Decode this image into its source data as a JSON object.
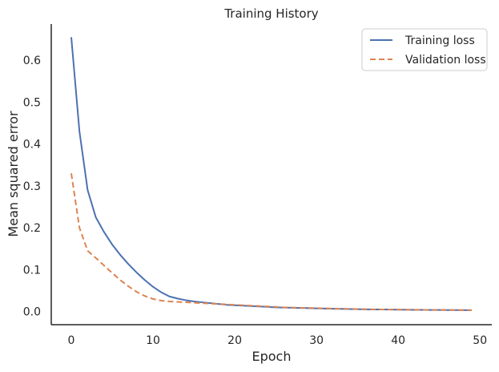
{
  "chart_data": {
    "type": "line",
    "title": "Training History",
    "xlabel": "Epoch",
    "ylabel": "Mean squared error",
    "xlim": [
      -2.45,
      51.45
    ],
    "ylim": [
      -0.0315,
      0.6865
    ],
    "xticks": [
      0,
      10,
      20,
      30,
      40,
      50
    ],
    "yticks": [
      0.0,
      0.1,
      0.2,
      0.3,
      0.4,
      0.5,
      0.6
    ],
    "ytick_labels": [
      "0.0",
      "0.1",
      "0.2",
      "0.3",
      "0.4",
      "0.5",
      "0.6"
    ],
    "grid": false,
    "legend_position": "top-right",
    "x": [
      0,
      1,
      2,
      3,
      4,
      5,
      6,
      7,
      8,
      9,
      10,
      11,
      12,
      13,
      14,
      15,
      16,
      17,
      18,
      19,
      20,
      21,
      22,
      23,
      24,
      25,
      26,
      27,
      28,
      29,
      30,
      31,
      32,
      33,
      34,
      35,
      36,
      37,
      38,
      39,
      40,
      41,
      42,
      43,
      44,
      45,
      46,
      47,
      48,
      49
    ],
    "series": [
      {
        "name": "Training loss",
        "color": "#4c72b0",
        "dash": "solid",
        "values": [
          0.655,
          0.43,
          0.29,
          0.225,
          0.19,
          0.16,
          0.135,
          0.113,
          0.093,
          0.075,
          0.059,
          0.046,
          0.036,
          0.031,
          0.027,
          0.024,
          0.022,
          0.02,
          0.018,
          0.016,
          0.015,
          0.014,
          0.013,
          0.012,
          0.011,
          0.01,
          0.0095,
          0.009,
          0.0085,
          0.008,
          0.0075,
          0.007,
          0.0066,
          0.0062,
          0.0058,
          0.0055,
          0.0052,
          0.005,
          0.0048,
          0.0046,
          0.0044,
          0.0042,
          0.004,
          0.0038,
          0.0037,
          0.0036,
          0.0035,
          0.0034,
          0.0033,
          0.0032
        ]
      },
      {
        "name": "Validation loss",
        "color": "#dd8452",
        "dash": "dashed",
        "values": [
          0.33,
          0.2,
          0.145,
          0.128,
          0.11,
          0.092,
          0.075,
          0.06,
          0.047,
          0.037,
          0.03,
          0.026,
          0.024,
          0.023,
          0.022,
          0.021,
          0.02,
          0.019,
          0.018,
          0.017,
          0.016,
          0.015,
          0.014,
          0.013,
          0.012,
          0.011,
          0.01,
          0.0095,
          0.009,
          0.0085,
          0.008,
          0.0075,
          0.007,
          0.0066,
          0.0062,
          0.0058,
          0.0055,
          0.0052,
          0.005,
          0.0048,
          0.0046,
          0.0044,
          0.0042,
          0.004,
          0.0038,
          0.0037,
          0.0036,
          0.0035,
          0.0034,
          0.0033
        ]
      }
    ]
  }
}
